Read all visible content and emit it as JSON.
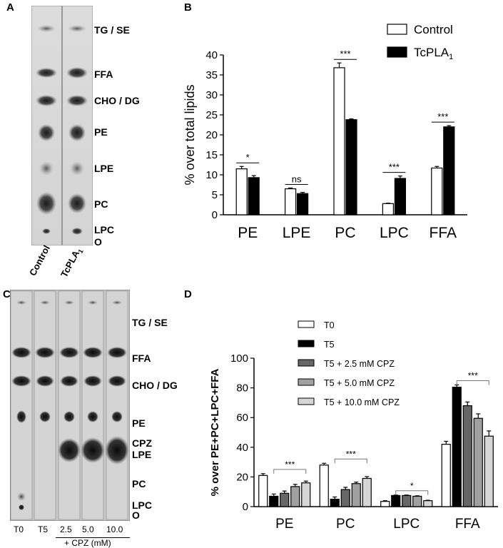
{
  "panels": {
    "a": {
      "letter": "A",
      "bands": [
        "TG / SE",
        "FFA",
        "CHO / DG",
        "PE",
        "LPE",
        "PC",
        "LPC",
        "O"
      ],
      "lanes": [
        "Control",
        "TcPLA"
      ],
      "lane_subscript": "1"
    },
    "b": {
      "letter": "B"
    },
    "c": {
      "letter": "C",
      "bands": [
        "TG / SE",
        "FFA",
        "CHO / DG",
        "PE",
        "CPZ",
        "LPE",
        "PC",
        "LPC",
        "O"
      ],
      "lanes": [
        "T0",
        "T5",
        "2.5",
        "5.0",
        "10.0"
      ],
      "footer": "+ CPZ (mM)"
    },
    "d": {
      "letter": "D"
    }
  },
  "colors": {
    "control": "#ffffff",
    "tcpla": "#000000",
    "d_series": [
      "#ffffff",
      "#000000",
      "#666666",
      "#a0a0a0",
      "#d6d6d6"
    ]
  },
  "chart_data": [
    {
      "type": "bar",
      "panel": "B",
      "categories": [
        "PE",
        "LPE",
        "PC",
        "LPC",
        "FFA"
      ],
      "ylabel": "% over total lipids",
      "ylim": [
        0,
        40
      ],
      "yticks": [
        0,
        5,
        10,
        15,
        20,
        25,
        30,
        35,
        40
      ],
      "legend_position": "top-right",
      "series": [
        {
          "name": "Control",
          "values": [
            11.5,
            6.5,
            36.8,
            2.8,
            11.7
          ],
          "errors": [
            0.6,
            0.2,
            1.2,
            0.1,
            0.4
          ]
        },
        {
          "name": "TcPLA1",
          "values": [
            9.3,
            5.3,
            23.8,
            9.1,
            22.0
          ],
          "errors": [
            0.5,
            0.3,
            0.2,
            0.6,
            0.3
          ]
        }
      ],
      "annotations": [
        {
          "category": "PE",
          "text": "*"
        },
        {
          "category": "LPE",
          "text": "ns"
        },
        {
          "category": "PC",
          "text": "***"
        },
        {
          "category": "LPC",
          "text": "***"
        },
        {
          "category": "FFA",
          "text": "***"
        }
      ]
    },
    {
      "type": "bar",
      "panel": "D",
      "categories": [
        "PE",
        "PC",
        "LPC",
        "FFA"
      ],
      "ylabel": "% over  PE+PC+LPC+FFA",
      "ylim": [
        0,
        100
      ],
      "yticks": [
        0,
        20,
        40,
        60,
        80,
        100
      ],
      "legend_position": "top",
      "series": [
        {
          "name": "T0",
          "values": [
            21,
            28,
            3.5,
            42
          ],
          "errors": [
            1.2,
            1.2,
            0.5,
            2
          ]
        },
        {
          "name": "T5",
          "values": [
            7,
            5,
            7.5,
            80.5
          ],
          "errors": [
            1.5,
            1.5,
            0.3,
            1.5
          ]
        },
        {
          "name": "T5 + 2.5 mM CPZ",
          "values": [
            9,
            11.5,
            7.5,
            68
          ],
          "errors": [
            1.5,
            1.5,
            0.3,
            2.5
          ]
        },
        {
          "name": "T5 + 5.0 mM CPZ",
          "values": [
            13.5,
            15.5,
            7,
            59.5
          ],
          "errors": [
            1.5,
            1,
            0.3,
            3
          ]
        },
        {
          "name": "T5 + 10.0 mM CPZ",
          "values": [
            16,
            19,
            4,
            47.5
          ],
          "errors": [
            1.2,
            1.2,
            0.3,
            3.5
          ]
        }
      ],
      "annotations": [
        {
          "category": "PE",
          "text": "***"
        },
        {
          "category": "PC",
          "text": "***"
        },
        {
          "category": "LPC",
          "text": "*"
        },
        {
          "category": "FFA",
          "text": "***"
        }
      ]
    }
  ]
}
